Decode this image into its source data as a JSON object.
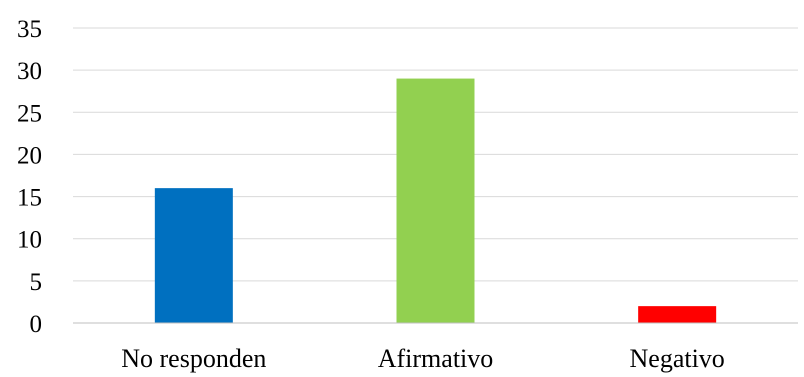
{
  "chart_data": {
    "type": "bar",
    "title": "",
    "xlabel": "",
    "ylabel": "",
    "categories": [
      "No responden",
      "Afirmativo",
      "Negativo"
    ],
    "values": [
      16,
      29,
      2
    ],
    "colors": [
      "#0070C0",
      "#92D050",
      "#FF0000"
    ],
    "ylim": [
      0,
      35
    ],
    "yticks": [
      0,
      5,
      10,
      15,
      20,
      25,
      30,
      35
    ],
    "grid": true,
    "legend": "none"
  }
}
